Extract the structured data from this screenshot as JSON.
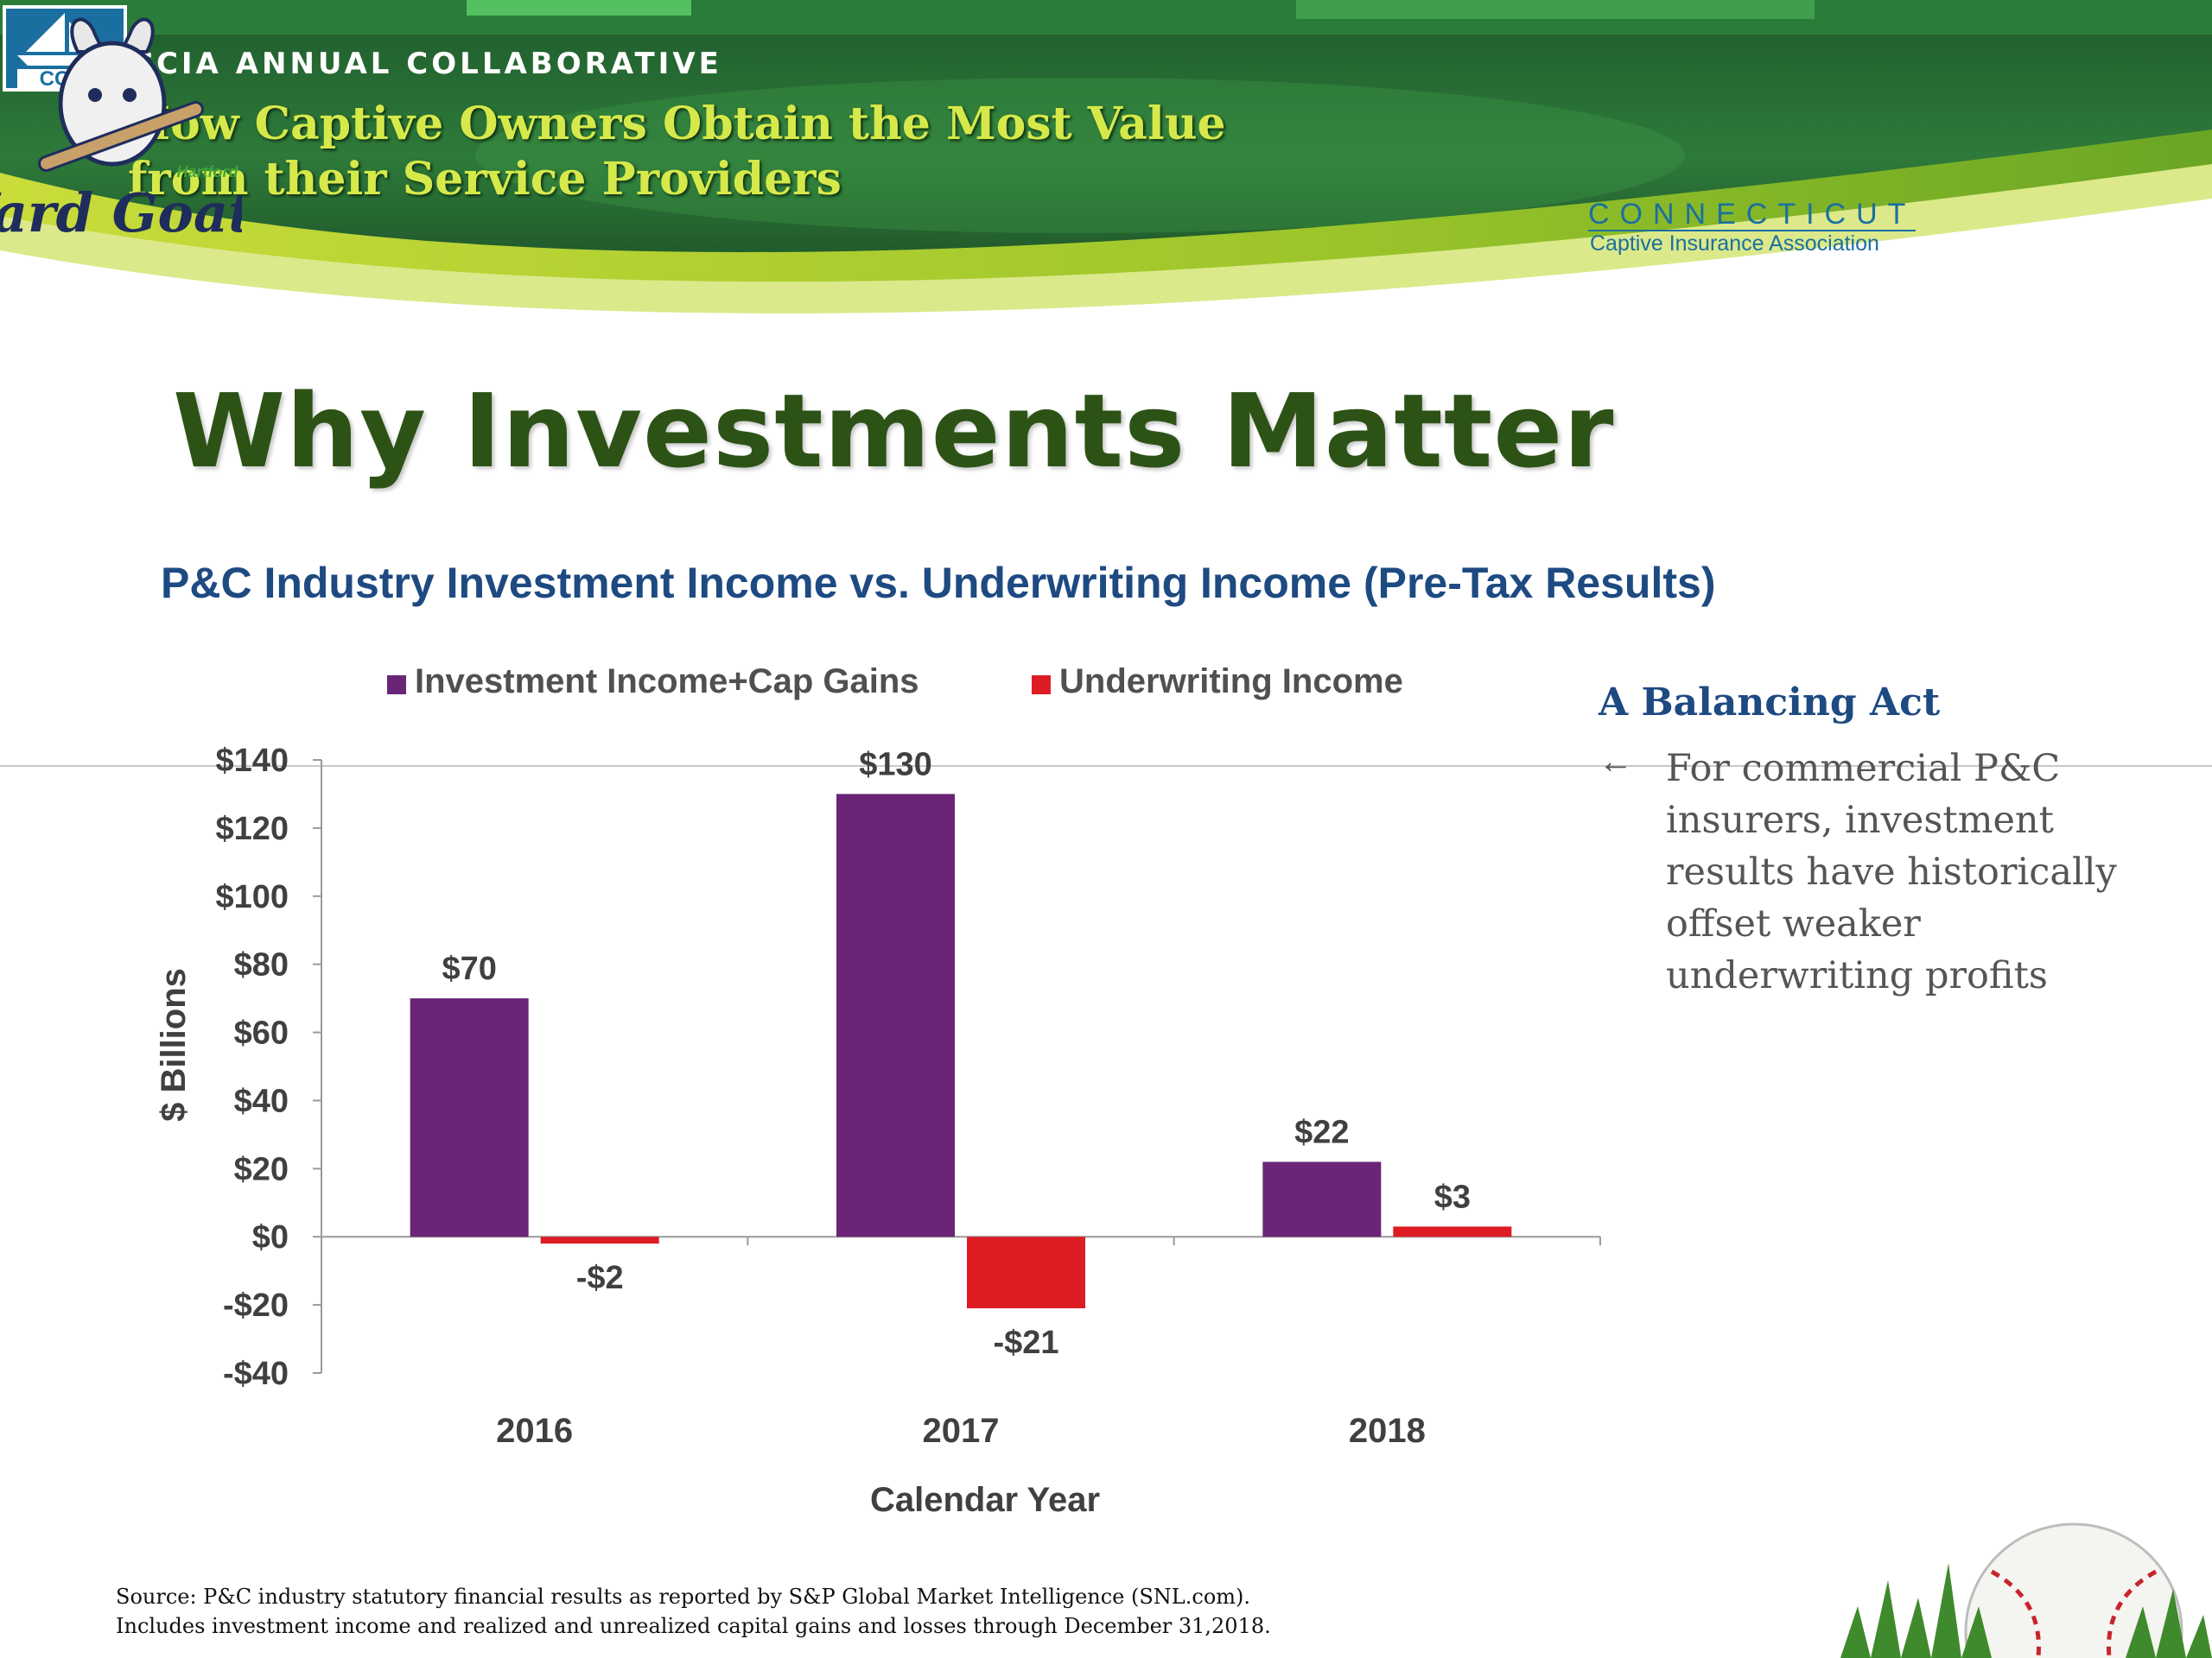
{
  "header": {
    "event_label": "CCIA ANNUAL COLLABORATIVE",
    "event_title_line1": "How Captive Owners Obtain the Most Value",
    "event_title_line2": "from their Service Providers",
    "logo_ccia": "CCIA",
    "logo_ccia_line1": "CONNECTICUT",
    "logo_ccia_line2": "Captive Insurance Association",
    "logo_goats": "Yard Goats",
    "logo_goats_small": "Hartford"
  },
  "slide": {
    "title": "Why Investments Matter",
    "subtitle": "P&C Industry Investment Income vs. Underwriting Income (Pre-Tax Results)"
  },
  "sidebar": {
    "heading": "A Balancing Act",
    "arrow": "←",
    "text": "For commercial P&C insurers, investment results have historically offset weaker underwriting profits"
  },
  "footer": {
    "source_line1": "Source: P&C industry statutory financial results as reported by S&P Global Market Intelligence (SNL.com).",
    "source_line2": "Includes investment income and realized and unrealized capital gains and losses through December 31,2018."
  },
  "chart_data": {
    "type": "bar",
    "categories": [
      "2016",
      "2017",
      "2018"
    ],
    "series": [
      {
        "name": "Investment Income+Cap Gains",
        "values": [
          70,
          130,
          22
        ],
        "labels": [
          "$70",
          "$130",
          "$22"
        ],
        "color": "#6a2576"
      },
      {
        "name": "Underwriting Income",
        "values": [
          -2,
          -21,
          3
        ],
        "labels": [
          "-$2",
          "-$21",
          "$3"
        ],
        "color": "#dd1c24"
      }
    ],
    "xlabel": "Calendar Year",
    "ylabel": "$ Billions",
    "ylim": [
      -40,
      140
    ],
    "yticks": [
      140,
      120,
      100,
      80,
      60,
      40,
      20,
      0,
      -20,
      -40
    ],
    "ytick_labels": [
      "$140",
      "$120",
      "$100",
      "$80",
      "$60",
      "$40",
      "$20",
      "$0",
      "-$20",
      "-$40"
    ],
    "legend_position": "top",
    "grid": false
  }
}
